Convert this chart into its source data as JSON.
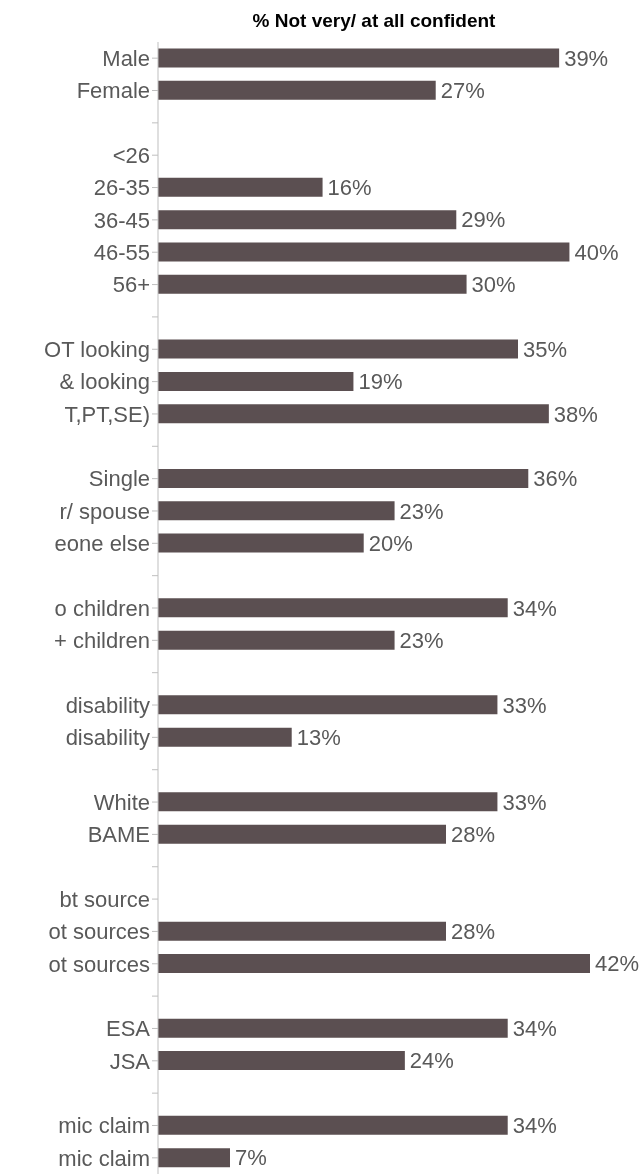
{
  "chart_data": {
    "type": "bar",
    "orientation": "horizontal",
    "title": "% Not very/ at all confident",
    "categories": [
      "Male",
      "Female",
      null,
      "<26",
      "26-35",
      "36-45",
      "46-55",
      "56+",
      null,
      "OT looking",
      "& looking",
      "T,PT,SE)",
      null,
      "Single",
      "r/ spouse",
      "eone else",
      null,
      "o children",
      "+ children",
      null,
      "disability",
      "disability",
      null,
      "White",
      "BAME",
      null,
      "bt source",
      "ot sources",
      "ot sources",
      null,
      "ESA",
      "JSA",
      null,
      "mic claim",
      "mic claim"
    ],
    "values": [
      39,
      27,
      null,
      null,
      16,
      29,
      40,
      30,
      null,
      35,
      19,
      38,
      null,
      36,
      23,
      20,
      null,
      34,
      23,
      null,
      33,
      13,
      null,
      33,
      28,
      null,
      null,
      28,
      42,
      null,
      34,
      24,
      null,
      34,
      7
    ],
    "value_labels": [
      "39%",
      "27%",
      null,
      null,
      "16%",
      "29%",
      "40%",
      "30%",
      null,
      "35%",
      "19%",
      "38%",
      null,
      "36%",
      "23%",
      "20%",
      null,
      "34%",
      "23%",
      null,
      "33%",
      "13%",
      null,
      "33%",
      "28%",
      null,
      null,
      "28%",
      "42%",
      null,
      "34%",
      "24%",
      null,
      "34%",
      "7%"
    ],
    "color": "#5b4f51",
    "tick_labels": "y"
  }
}
